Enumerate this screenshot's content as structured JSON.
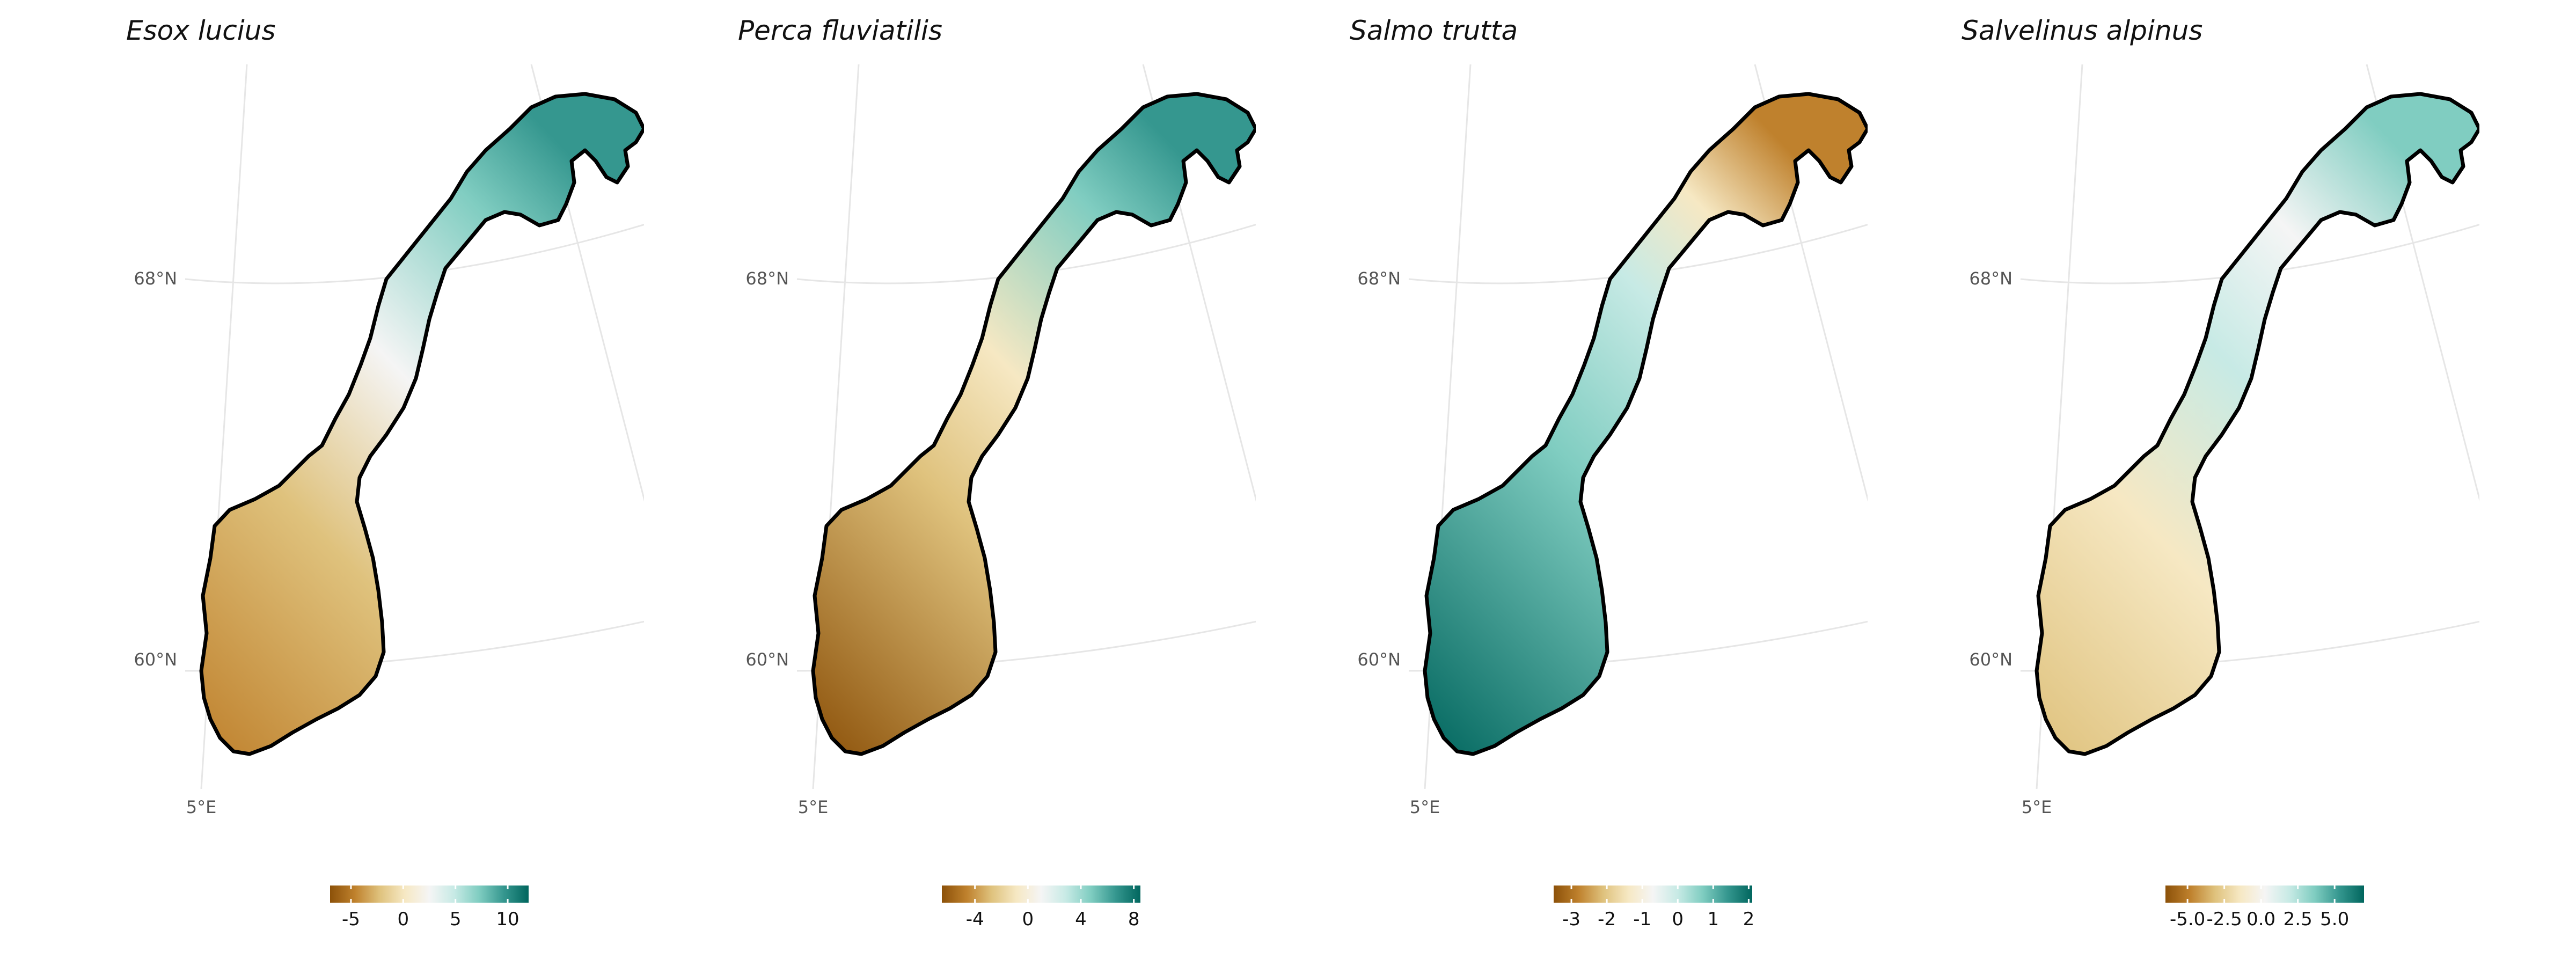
{
  "graticule": {
    "lat_labels": [
      "68°N",
      "60°N"
    ],
    "lon_label": "5°E"
  },
  "palette": [
    "#8c5109",
    "#bf812d",
    "#dfc27d",
    "#f6e8c3",
    "#f5f5f5",
    "#c7eae5",
    "#80cdc1",
    "#35978f",
    "#01665e"
  ],
  "panels": [
    {
      "title": "Esox lucius",
      "legend": {
        "min": -7,
        "max": 12,
        "ticks": [
          -5,
          0,
          5,
          10
        ],
        "tick_labels": [
          "-5",
          "0",
          "5",
          "10"
        ]
      },
      "pattern": "Negative values (brown) across western, central and northern Norway; positive values (teal) in the southeast and the far northeast."
    },
    {
      "title": "Perca fluviatilis",
      "legend": {
        "min": -6.5,
        "max": 8.5,
        "ticks": [
          -4,
          0,
          4,
          8
        ],
        "tick_labels": [
          "-4",
          "0",
          "4",
          "8"
        ]
      },
      "pattern": "Negative values along the west coast and central Norway; positive values in the southeast and far northeast."
    },
    {
      "title": "Salmo trutta",
      "legend": {
        "min": -3.5,
        "max": 2.1,
        "ticks": [
          -3,
          -2,
          -1,
          0,
          1,
          2
        ],
        "tick_labels": [
          "-3",
          "-2",
          "-1",
          "0",
          "1",
          "2"
        ]
      },
      "pattern": "Mostly positive values across southern and central Norway; negative values in the far north (Finnmark)."
    },
    {
      "title": "Salvelinus alpinus",
      "legend": {
        "min": -6.5,
        "max": 7.0,
        "ticks": [
          -5,
          -2.5,
          0,
          2.5,
          5
        ],
        "tick_labels": [
          "-5.0",
          "-2.5",
          "0.0",
          "2.5",
          "5.0"
        ]
      },
      "pattern": "Patchy mixed values: negative in the southwest and south, positive spots in the central mountains and the north."
    }
  ]
}
